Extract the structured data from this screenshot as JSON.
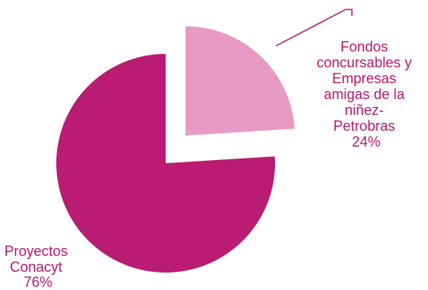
{
  "chart_data": {
    "type": "pie",
    "title": "",
    "legend": "none",
    "exploded": "Fondos concursables y Empresas amigas de la niñez-Petrobras",
    "colors": {
      "Proyectos Conacyt": "#b91c72",
      "Fondos concursables y Empresas amigas de la niñez-Petrobras": "#e79bc4",
      "label_text": "#b9176f",
      "leader_line": "#b9176f"
    },
    "slices": [
      {
        "name": "Proyectos Conacyt",
        "value": 76,
        "label_lines": [
          "Proyectos",
          "Conacyt",
          "76%"
        ]
      },
      {
        "name": "Fondos concursables y Empresas amigas de la niñez-Petrobras",
        "value": 24,
        "label_lines": [
          "Fondos",
          "concursables y",
          "Empresas",
          "amigas de la",
          "niñez-",
          "Petrobras",
          "24%"
        ]
      }
    ]
  }
}
